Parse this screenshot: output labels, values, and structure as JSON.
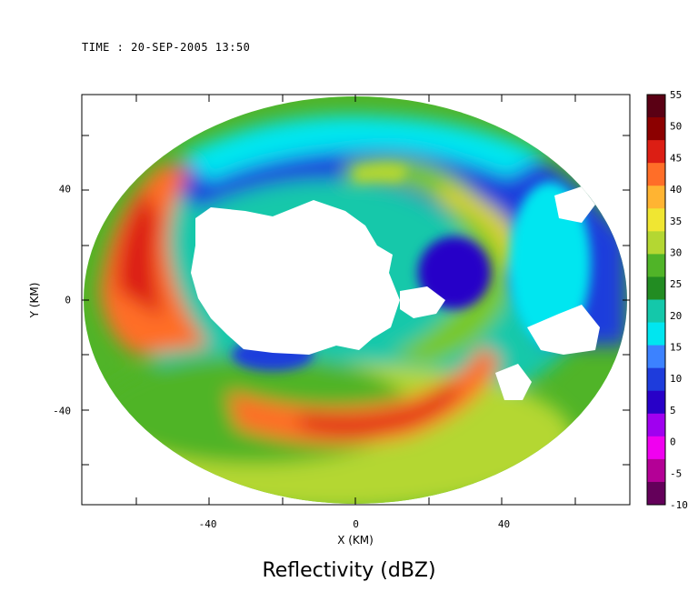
{
  "header": {
    "time_label": "TIME : 20-SEP-2005 13:50"
  },
  "chart_data": {
    "type": "heatmap",
    "title": "Reflectivity (dBZ)",
    "xlabel": "X (KM)",
    "ylabel": "Y (KM)",
    "xlim": [
      -74,
      74
    ],
    "ylim": [
      -74,
      74
    ],
    "x_ticks": [
      -40,
      0,
      40
    ],
    "y_ticks": [
      -40,
      0,
      40
    ],
    "colorbar": {
      "ticks": [
        55,
        50,
        45,
        40,
        35,
        30,
        25,
        20,
        15,
        10,
        5,
        0,
        -5,
        -10
      ],
      "range": [
        -10,
        55
      ],
      "colors": [
        "#5a0014",
        "#8c0000",
        "#dc1e14",
        "#ff6e28",
        "#ffb432",
        "#f0e632",
        "#b4d732",
        "#50b428",
        "#228c22",
        "#14c8aa",
        "#00e6f0",
        "#3c82ff",
        "#1e3cdc",
        "#2800c8",
        "#a000f0",
        "#f000f0",
        "#b40096",
        "#64005a"
      ]
    },
    "grid": false
  },
  "colors": {
    "background": "#ffffff",
    "missing": "#ffffff"
  }
}
